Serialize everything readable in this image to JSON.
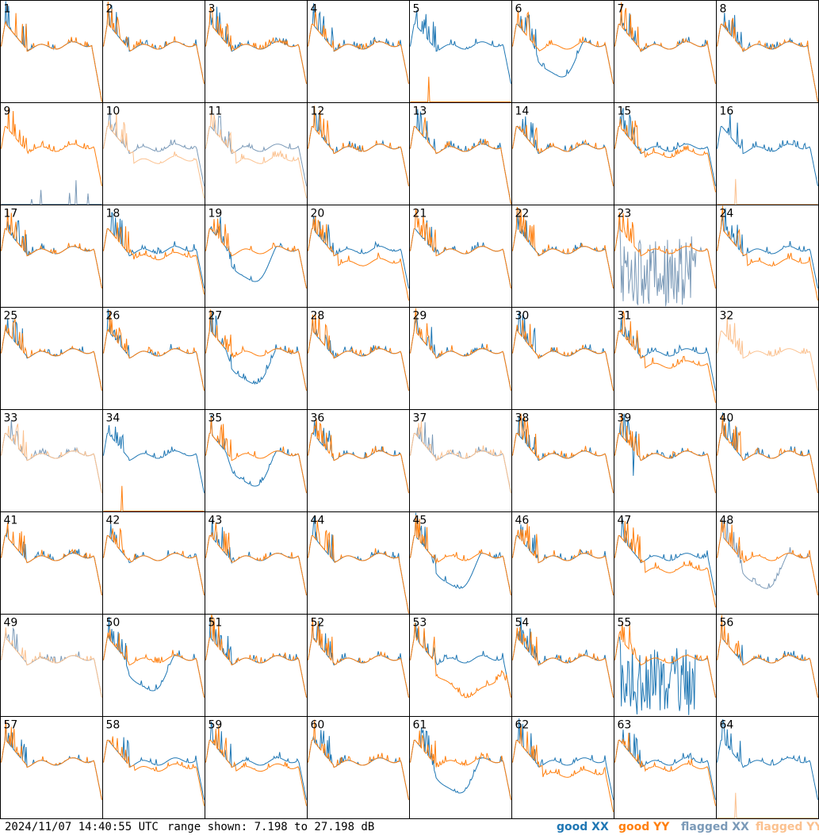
{
  "footer": {
    "timestamp": "2024/11/07 14:40:55 UTC",
    "range": "range shown: 7.198 to 27.198 dB"
  },
  "legend": {
    "good_xx": "good XX",
    "good_yy": "good YY",
    "flagged_xx": "flagged XX",
    "flagged_yy": "flagged YY"
  },
  "colors": {
    "good_xx": "#1f77b4",
    "good_yy": "#ff7f0e",
    "flagged_xx": "#7b9ab8",
    "flagged_yy": "#fbc18f",
    "grid": "#000000"
  },
  "chart_data": {
    "type": "line",
    "layout": "8x8 small multiples",
    "ylim": [
      7.198,
      27.198
    ],
    "y_unit": "dB",
    "series_names": [
      "good XX",
      "good YY",
      "flagged XX",
      "flagged YY"
    ],
    "panels": [
      {
        "label": "1",
        "xx": "good",
        "yy": "good",
        "style": "rolloff"
      },
      {
        "label": "2",
        "xx": "good",
        "yy": "good",
        "style": "normal"
      },
      {
        "label": "3",
        "xx": "good",
        "yy": "good",
        "style": "normal"
      },
      {
        "label": "4",
        "xx": "good",
        "yy": "good",
        "style": "normal"
      },
      {
        "label": "5",
        "xx": "good",
        "yy": "good",
        "style": "yy_dead"
      },
      {
        "label": "6",
        "xx": "good",
        "yy": "good",
        "style": "xx_dip"
      },
      {
        "label": "7",
        "xx": "good",
        "yy": "good",
        "style": "normal"
      },
      {
        "label": "8",
        "xx": "good",
        "yy": "good",
        "style": "rolloff"
      },
      {
        "label": "9",
        "xx": "flagged",
        "yy": "good",
        "style": "xx_dead"
      },
      {
        "label": "10",
        "xx": "flagged",
        "yy": "flagged",
        "style": "yy_low"
      },
      {
        "label": "11",
        "xx": "flagged",
        "yy": "flagged",
        "style": "yy_low"
      },
      {
        "label": "12",
        "xx": "good",
        "yy": "good",
        "style": "normal"
      },
      {
        "label": "13",
        "xx": "good",
        "yy": "good",
        "style": "rolloff"
      },
      {
        "label": "14",
        "xx": "good",
        "yy": "good",
        "style": "normal"
      },
      {
        "label": "15",
        "xx": "good",
        "yy": "good",
        "style": "split"
      },
      {
        "label": "16",
        "xx": "good",
        "yy": "flagged",
        "style": "yy_dead"
      },
      {
        "label": "17",
        "xx": "good",
        "yy": "good",
        "style": "normal"
      },
      {
        "label": "18",
        "xx": "good",
        "yy": "good",
        "style": "split"
      },
      {
        "label": "19",
        "xx": "good",
        "yy": "good",
        "style": "xx_dip"
      },
      {
        "label": "20",
        "xx": "good",
        "yy": "good",
        "style": "yy_low"
      },
      {
        "label": "21",
        "xx": "good",
        "yy": "good",
        "style": "normal"
      },
      {
        "label": "22",
        "xx": "good",
        "yy": "good",
        "style": "normal"
      },
      {
        "label": "23",
        "xx": "flagged",
        "yy": "good",
        "style": "xx_noise"
      },
      {
        "label": "24",
        "xx": "good",
        "yy": "good",
        "style": "yy_low"
      },
      {
        "label": "25",
        "xx": "good",
        "yy": "good",
        "style": "normal"
      },
      {
        "label": "26",
        "xx": "good",
        "yy": "good",
        "style": "normal"
      },
      {
        "label": "27",
        "xx": "good",
        "yy": "good",
        "style": "xx_dip"
      },
      {
        "label": "28",
        "xx": "good",
        "yy": "good",
        "style": "normal"
      },
      {
        "label": "29",
        "xx": "good",
        "yy": "good",
        "style": "normal"
      },
      {
        "label": "30",
        "xx": "good",
        "yy": "good",
        "style": "normal"
      },
      {
        "label": "31",
        "xx": "good",
        "yy": "good",
        "style": "yy_low"
      },
      {
        "label": "32",
        "xx": "flagged",
        "yy": "flagged",
        "style": "yy_only"
      },
      {
        "label": "33",
        "xx": "flagged",
        "yy": "flagged",
        "style": "normal"
      },
      {
        "label": "34",
        "xx": "good",
        "yy": "good",
        "style": "yy_dead"
      },
      {
        "label": "35",
        "xx": "good",
        "yy": "good",
        "style": "xx_dip"
      },
      {
        "label": "36",
        "xx": "good",
        "yy": "good",
        "style": "normal"
      },
      {
        "label": "37",
        "xx": "flagged",
        "yy": "flagged",
        "style": "normal"
      },
      {
        "label": "38",
        "xx": "good",
        "yy": "good",
        "style": "normal"
      },
      {
        "label": "39",
        "xx": "good",
        "yy": "good",
        "style": "spike"
      },
      {
        "label": "40",
        "xx": "good",
        "yy": "good",
        "style": "normal"
      },
      {
        "label": "41",
        "xx": "good",
        "yy": "good",
        "style": "normal"
      },
      {
        "label": "42",
        "xx": "good",
        "yy": "good",
        "style": "normal"
      },
      {
        "label": "43",
        "xx": "good",
        "yy": "good",
        "style": "normal"
      },
      {
        "label": "44",
        "xx": "good",
        "yy": "good",
        "style": "rolloff"
      },
      {
        "label": "45",
        "xx": "good",
        "yy": "good",
        "style": "xx_dip"
      },
      {
        "label": "46",
        "xx": "good",
        "yy": "good",
        "style": "normal"
      },
      {
        "label": "47",
        "xx": "good",
        "yy": "good",
        "style": "yy_low"
      },
      {
        "label": "48",
        "xx": "flagged",
        "yy": "good",
        "style": "xx_dip"
      },
      {
        "label": "49",
        "xx": "flagged",
        "yy": "flagged",
        "style": "normal"
      },
      {
        "label": "50",
        "xx": "good",
        "yy": "good",
        "style": "xx_dip"
      },
      {
        "label": "51",
        "xx": "good",
        "yy": "good",
        "style": "normal"
      },
      {
        "label": "52",
        "xx": "good",
        "yy": "good",
        "style": "normal"
      },
      {
        "label": "53",
        "xx": "good",
        "yy": "good",
        "style": "yy_dip"
      },
      {
        "label": "54",
        "xx": "good",
        "yy": "good",
        "style": "normal"
      },
      {
        "label": "55",
        "xx": "good",
        "yy": "good",
        "style": "xx_noise"
      },
      {
        "label": "56",
        "xx": "good",
        "yy": "good",
        "style": "normal"
      },
      {
        "label": "57",
        "xx": "good",
        "yy": "good",
        "style": "normal"
      },
      {
        "label": "58",
        "xx": "good",
        "yy": "good",
        "style": "split"
      },
      {
        "label": "59",
        "xx": "good",
        "yy": "good",
        "style": "split"
      },
      {
        "label": "60",
        "xx": "good",
        "yy": "good",
        "style": "normal"
      },
      {
        "label": "61",
        "xx": "good",
        "yy": "good",
        "style": "xx_dip"
      },
      {
        "label": "62",
        "xx": "good",
        "yy": "good",
        "style": "yy_low"
      },
      {
        "label": "63",
        "xx": "good",
        "yy": "good",
        "style": "split"
      },
      {
        "label": "64",
        "xx": "good",
        "yy": "flagged",
        "style": "yy_dead"
      }
    ]
  }
}
